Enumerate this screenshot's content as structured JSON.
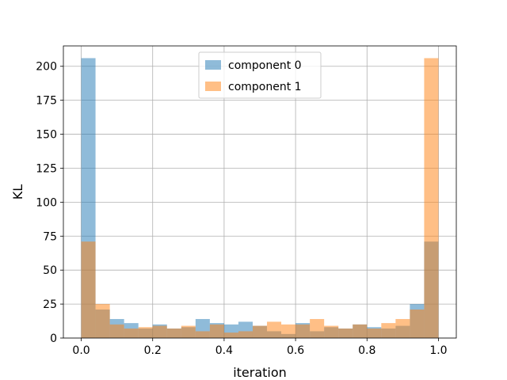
{
  "chart_data": {
    "type": "bar",
    "subtype": "overlapping-histogram",
    "title": "",
    "xlabel": "iteration",
    "ylabel": "KL",
    "xlim": [
      -0.05,
      1.05
    ],
    "ylim": [
      0,
      215
    ],
    "x_ticks": [
      0.0,
      0.2,
      0.4,
      0.6,
      0.8,
      1.0
    ],
    "x_tick_labels": [
      "0.0",
      "0.2",
      "0.4",
      "0.6",
      "0.8",
      "1.0"
    ],
    "y_ticks": [
      0,
      25,
      50,
      75,
      100,
      125,
      150,
      175,
      200
    ],
    "y_tick_labels": [
      "0",
      "25",
      "50",
      "75",
      "100",
      "125",
      "150",
      "175",
      "200"
    ],
    "grid": true,
    "legend_position": "top-center",
    "bin_edges": [
      0.0,
      0.04,
      0.08,
      0.12,
      0.16,
      0.2,
      0.24,
      0.28,
      0.32,
      0.36,
      0.4,
      0.44,
      0.48,
      0.52,
      0.56,
      0.6,
      0.64,
      0.68,
      0.72,
      0.76,
      0.8,
      0.84,
      0.88,
      0.92,
      0.96,
      1.0
    ],
    "series": [
      {
        "name": "component 0",
        "color": "#1f77b4",
        "opacity": 0.5,
        "values": [
          206,
          21,
          14,
          11,
          7,
          10,
          7,
          8,
          14,
          11,
          10,
          12,
          9,
          5,
          3,
          11,
          5,
          8,
          7,
          10,
          8,
          7,
          9,
          25,
          71
        ]
      },
      {
        "name": "component 1",
        "color": "#ff7f0e",
        "opacity": 0.5,
        "values": [
          71,
          25,
          10,
          7,
          8,
          9,
          7,
          9,
          5,
          10,
          4,
          5,
          9,
          12,
          10,
          10,
          14,
          9,
          7,
          10,
          7,
          11,
          14,
          21,
          206
        ]
      }
    ]
  }
}
